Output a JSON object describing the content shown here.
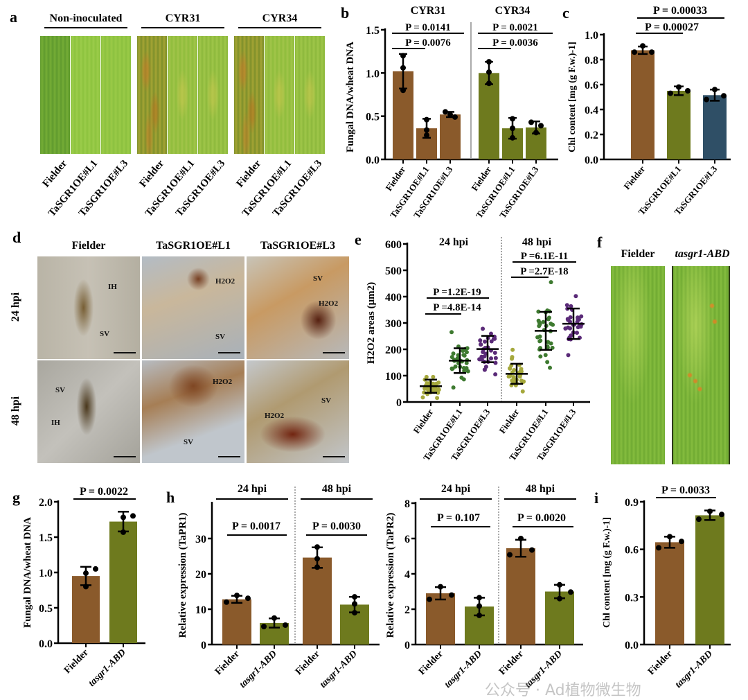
{
  "figure": {
    "panel_labels": [
      "a",
      "b",
      "c",
      "d",
      "e",
      "f",
      "g",
      "h",
      "i"
    ],
    "watermark": "公众号 · Ad植物微生物"
  },
  "colors": {
    "fielder_brown": "#8a5a2b",
    "line_olive": "#6e7a1e",
    "line3_blue": "#2f4f66",
    "e_fielder": "#a5a83c",
    "e_l1": "#3e7a30",
    "e_l3": "#5a2a78",
    "leaf_green": "#7fb23a"
  },
  "panel_a": {
    "groups": [
      {
        "title": "Non-inoculated",
        "samples": [
          "Fielder",
          "TaSGR1OE#L1",
          "TaSGR1OE#L3"
        ]
      },
      {
        "title": "CYR31",
        "samples": [
          "Fielder",
          "TaSGR1OE#L1",
          "TaSGR1OE#L3"
        ]
      },
      {
        "title": "CYR34",
        "samples": [
          "Fielder",
          "TaSGR1OE#L1",
          "TaSGR1OE#L3"
        ]
      }
    ]
  },
  "panel_d": {
    "columns": [
      "Fielder",
      "TaSGR1OE#L1",
      "TaSGR1OE#L3"
    ],
    "rows": [
      "24 hpi",
      "48 hpi"
    ],
    "annotations": {
      "r0c0": [
        "IH",
        "SV"
      ],
      "r0c1": [
        "H2O2",
        "SV"
      ],
      "r0c2": [
        "SV",
        "H2O2"
      ],
      "r1c0": [
        "SV",
        "IH"
      ],
      "r1c1": [
        "H2O2",
        "SV"
      ],
      "r1c2": [
        "SV",
        "H2O2"
      ]
    }
  },
  "panel_f": {
    "samples": [
      "Fielder",
      "tasgr1-ABD"
    ]
  },
  "chart_data": [
    {
      "id": "b",
      "type": "bar",
      "ylabel": "Fungal DNA/wheat DNA",
      "ylim": [
        0,
        1.5
      ],
      "yticks": [
        0.0,
        0.5,
        1.0,
        1.5
      ],
      "ytick_labels": [
        "0.0",
        "0.5",
        "1.0",
        "1.5"
      ],
      "groups": [
        {
          "title": "CYR31",
          "categories": [
            "Fielder",
            "TaSGR1OE#L1",
            "TaSGR1OE#L3"
          ],
          "values": [
            1.02,
            0.36,
            0.52
          ],
          "sd": [
            0.2,
            0.11,
            0.03
          ],
          "points": [
            [
              1.2,
              1.06,
              0.8
            ],
            [
              0.46,
              0.34,
              0.28
            ],
            [
              0.55,
              0.49,
              0.52
            ]
          ],
          "pvalues": [
            "P = 0.0141",
            "P = 0.0076"
          ]
        },
        {
          "title": "CYR34",
          "categories": [
            "Fielder",
            "TaSGR1OE#L1",
            "TaSGR1OE#L3"
          ],
          "values": [
            1.0,
            0.36,
            0.37
          ],
          "sd": [
            0.13,
            0.12,
            0.07
          ],
          "points": [
            [
              1.13,
              1.01,
              0.88
            ],
            [
              0.47,
              0.36,
              0.25
            ],
            [
              0.43,
              0.39,
              0.31
            ]
          ],
          "pvalues": [
            "P = 0.0021",
            "P = 0.0036"
          ]
        }
      ]
    },
    {
      "id": "c",
      "type": "bar",
      "ylabel": "Chl content [mg (g F.w.)-1]",
      "ylim": [
        0,
        1.0
      ],
      "yticks": [
        0.0,
        0.2,
        0.4,
        0.6,
        0.8,
        1.0
      ],
      "ytick_labels": [
        "0.0",
        "0.2",
        "0.4",
        "0.6",
        "0.8",
        "1.0"
      ],
      "categories": [
        "Fielder",
        "TaSGR1OE#L1",
        "TaSGR1OE#L3"
      ],
      "values": [
        0.875,
        0.55,
        0.515
      ],
      "sd": [
        0.03,
        0.035,
        0.045
      ],
      "points": [
        [
          0.91,
          0.86,
          0.86
        ],
        [
          0.58,
          0.53,
          0.55
        ],
        [
          0.56,
          0.48,
          0.51
        ]
      ],
      "pvalues": [
        "P = 0.00033",
        "P = 0.00027"
      ]
    },
    {
      "id": "e",
      "type": "scatter",
      "ylabel": "H2O2 areas (μm2)",
      "ylim": [
        0,
        600
      ],
      "yticks": [
        0,
        100,
        200,
        300,
        400,
        500,
        600
      ],
      "ytick_labels": [
        "0",
        "100",
        "200",
        "300",
        "400",
        "500",
        "600"
      ],
      "groups": [
        {
          "title": "24 hpi",
          "categories": [
            "Fielder",
            "TaSGR1OE#L1",
            "TaSGR1OE#L3"
          ],
          "means": [
            60,
            157,
            201
          ],
          "sd": [
            25,
            47,
            50
          ],
          "ranges": [
            [
              15,
              95
            ],
            [
              55,
              265
            ],
            [
              105,
              278
            ]
          ],
          "pvalues": [
            "P =1.2E-19",
            "P =4.8E-14"
          ]
        },
        {
          "title": "48 hpi",
          "categories": [
            "Fielder",
            "TaSGR1OE#L1",
            "TaSGR1OE#L3"
          ],
          "means": [
            107,
            270,
            297
          ],
          "sd": [
            38,
            72,
            58
          ],
          "ranges": [
            [
              40,
              198
            ],
            [
              130,
              455
            ],
            [
              178,
              402
            ]
          ],
          "pvalues": [
            "P =6.1E-11",
            "P =2.7E-18"
          ]
        }
      ]
    },
    {
      "id": "g",
      "type": "bar",
      "ylabel": "Fungal DNA/wheat DNA",
      "ylim": [
        0,
        2.0
      ],
      "yticks": [
        0.0,
        0.5,
        1.0,
        1.5,
        2.0
      ],
      "ytick_labels": [
        "0.0",
        "0.5",
        "1.0",
        "1.5",
        "2.0"
      ],
      "categories": [
        "Fielder",
        "tasgr1-ABD"
      ],
      "values": [
        0.95,
        1.72
      ],
      "sd": [
        0.13,
        0.14
      ],
      "points": [
        [
          1.05,
          0.99,
          0.8
        ],
        [
          1.8,
          1.78,
          1.57
        ]
      ],
      "pvalues": [
        "P = 0.0022"
      ]
    },
    {
      "id": "h1",
      "type": "bar",
      "ylabel": "Relative expression (TaPR1)",
      "ylim": [
        0,
        40
      ],
      "yticks": [
        0,
        10,
        20,
        30
      ],
      "ytick_labels": [
        "0",
        "10",
        "20",
        "30"
      ],
      "groups": [
        {
          "title": "24 hpi",
          "categories": [
            "Fielder",
            "tasgr1-ABD"
          ],
          "values": [
            12.8,
            6.1
          ],
          "sd": [
            1.0,
            1.3
          ],
          "points": [
            [
              13.9,
              13.1,
              12.0
            ],
            [
              7.5,
              5.5,
              5.1
            ]
          ],
          "pvalues": [
            "P = 0.0017"
          ]
        },
        {
          "title": "48 hpi",
          "categories": [
            "Fielder",
            "tasgr1-ABD"
          ],
          "values": [
            24.6,
            11.3
          ],
          "sd": [
            2.9,
            2.2
          ],
          "points": [
            [
              27.6,
              24.3,
              21.9
            ],
            [
              13.5,
              11.5,
              9.0
            ]
          ],
          "pvalues": [
            "P = 0.0030"
          ]
        }
      ]
    },
    {
      "id": "h2",
      "type": "bar",
      "ylabel": "Relative expression (TaPR2)",
      "ylim": [
        0,
        8
      ],
      "yticks": [
        0,
        2,
        4,
        6,
        8
      ],
      "ytick_labels": [
        "0",
        "2",
        "4",
        "6",
        "8"
      ],
      "groups": [
        {
          "title": "24 hpi",
          "categories": [
            "Fielder",
            "tasgr1-ABD"
          ],
          "values": [
            2.9,
            2.15
          ],
          "sd": [
            0.35,
            0.5
          ],
          "points": [
            [
              3.27,
              2.8,
              2.56
            ],
            [
              2.65,
              2.18,
              1.65
            ]
          ],
          "pvalues": [
            "P = 0.107"
          ]
        },
        {
          "title": "48 hpi",
          "categories": [
            "Fielder",
            "tasgr1-ABD"
          ],
          "values": [
            5.45,
            3.0
          ],
          "sd": [
            0.48,
            0.38
          ],
          "points": [
            [
              6.0,
              5.35,
              5.08
            ],
            [
              3.38,
              2.97,
              2.6
            ]
          ],
          "pvalues": [
            "P = 0.0020"
          ]
        }
      ]
    },
    {
      "id": "i",
      "type": "bar",
      "ylabel": "Chl content [mg (g F.w.)-1]",
      "ylim": [
        0,
        0.9
      ],
      "yticks": [
        0.0,
        0.3,
        0.6,
        0.9
      ],
      "ytick_labels": [
        "0.0",
        "0.3",
        "0.6",
        "0.9"
      ],
      "categories": [
        "Fielder",
        "tasgr1-ABD"
      ],
      "values": [
        0.645,
        0.815
      ],
      "sd": [
        0.035,
        0.03
      ],
      "points": [
        [
          0.68,
          0.61,
          0.65
        ],
        [
          0.84,
          0.79,
          0.82
        ]
      ],
      "pvalues": [
        "P = 0.0033"
      ]
    }
  ]
}
